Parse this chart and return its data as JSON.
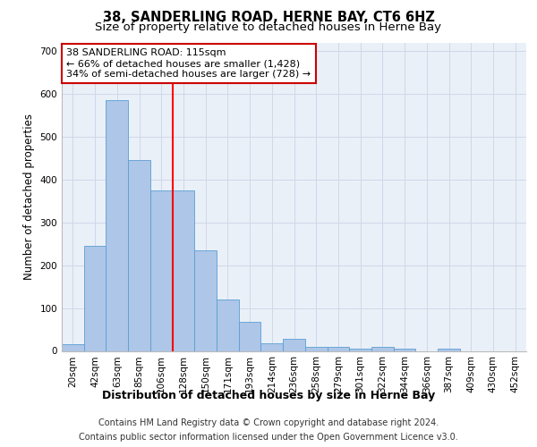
{
  "title": "38, SANDERLING ROAD, HERNE BAY, CT6 6HZ",
  "subtitle": "Size of property relative to detached houses in Herne Bay",
  "xlabel": "Distribution of detached houses by size in Herne Bay",
  "ylabel": "Number of detached properties",
  "categories": [
    "20sqm",
    "42sqm",
    "63sqm",
    "85sqm",
    "106sqm",
    "128sqm",
    "150sqm",
    "171sqm",
    "193sqm",
    "214sqm",
    "236sqm",
    "258sqm",
    "279sqm",
    "301sqm",
    "322sqm",
    "344sqm",
    "366sqm",
    "387sqm",
    "409sqm",
    "430sqm",
    "452sqm"
  ],
  "values": [
    15,
    245,
    585,
    445,
    375,
    375,
    235,
    120,
    68,
    18,
    28,
    10,
    10,
    5,
    10,
    5,
    0,
    5,
    0,
    0,
    0
  ],
  "bar_color": "#aec6e8",
  "bar_edge_color": "#5a9fd4",
  "annotation_text": "38 SANDERLING ROAD: 115sqm\n← 66% of detached houses are smaller (1,428)\n34% of semi-detached houses are larger (728) →",
  "annotation_box_color": "#ffffff",
  "annotation_box_edge": "#cc0000",
  "footnote_line1": "Contains HM Land Registry data © Crown copyright and database right 2024.",
  "footnote_line2": "Contains public sector information licensed under the Open Government Licence v3.0.",
  "ylim": [
    0,
    720
  ],
  "yticks": [
    0,
    100,
    200,
    300,
    400,
    500,
    600,
    700
  ],
  "grid_color": "#d0d8e8",
  "background_color": "#eaf0f8",
  "title_fontsize": 10.5,
  "subtitle_fontsize": 9.5,
  "xlabel_fontsize": 9,
  "ylabel_fontsize": 8.5,
  "tick_fontsize": 7.5,
  "annotation_fontsize": 8,
  "footnote_fontsize": 7
}
